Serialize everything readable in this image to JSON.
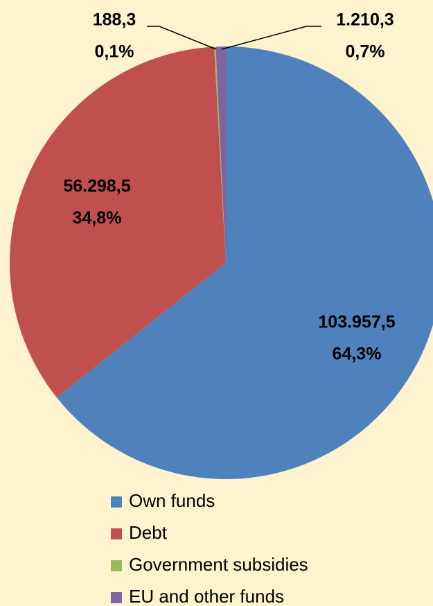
{
  "chart_data": {
    "type": "pie",
    "categories": [
      "Own funds",
      "Debt",
      "Government subsidies",
      "EU and other funds"
    ],
    "values": [
      103957.5,
      56298.5,
      188.3,
      1210.3
    ],
    "value_labels": [
      "103.957,5",
      "56.298,5",
      "188,3",
      "1.210,3"
    ],
    "percents": [
      64.3,
      34.8,
      0.1,
      0.7
    ],
    "percent_labels": [
      "64,3%",
      "34,8%",
      "0,1%",
      "0,7%"
    ],
    "colors": [
      "#4f81bd",
      "#c0504d",
      "#9bbb59",
      "#8064a2"
    ],
    "legend": "bottom"
  }
}
